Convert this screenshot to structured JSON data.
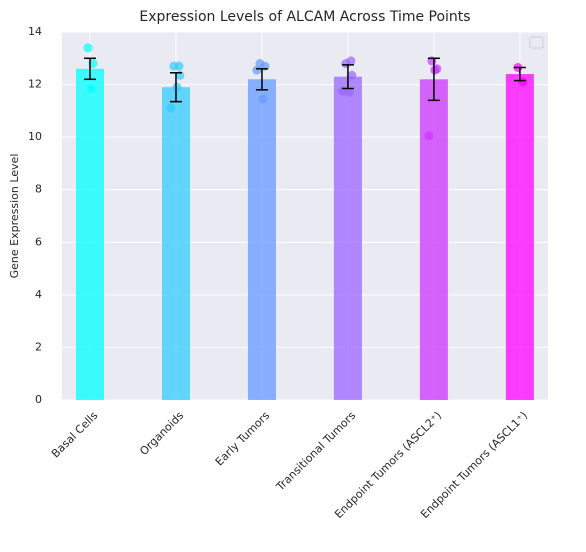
{
  "chart_data": {
    "type": "bar",
    "title": "Expression Levels of ALCAM Across Time Points",
    "y_label": "Gene Expression Level",
    "categories": [
      "Basal Cells",
      "Organoids",
      "Early Tumors",
      "Transitional Tumors",
      "Endpoint Tumors (ASCL2⁺)",
      "Endpoint Tumors (ASCL1⁺)"
    ],
    "values": [
      12.6,
      11.9,
      12.2,
      12.3,
      12.2,
      12.4
    ],
    "errors": [
      0.4,
      0.55,
      0.4,
      0.45,
      0.8,
      0.25
    ],
    "colors": [
      "#00ffff",
      "#33ccff",
      "#6699ff",
      "#9966ff",
      "#cc33ff",
      "#ff00ff"
    ],
    "points": [
      [
        13.4,
        12.8,
        11.85
      ],
      [
        12.7,
        12.7,
        11.9,
        11.1,
        12.35
      ],
      [
        12.8,
        12.7,
        11.45,
        12.55
      ],
      [
        12.8,
        12.9,
        11.7,
        11.75,
        12.35
      ],
      [
        12.9,
        12.6,
        12.55,
        10.05
      ],
      [
        12.65,
        12.1
      ]
    ],
    "ylim": [
      0,
      14
    ],
    "yticks": [
      0,
      2,
      4,
      6,
      8,
      10,
      12,
      14
    ],
    "grid": true
  }
}
